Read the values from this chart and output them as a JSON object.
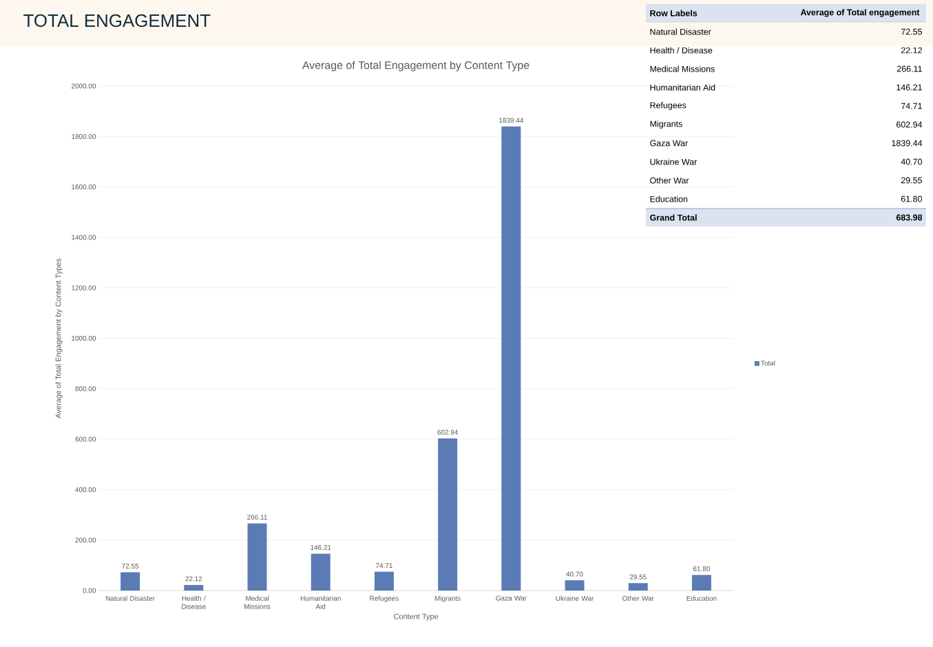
{
  "chart_data": {
    "type": "bar",
    "title": "Average of Total Engagement by Content Type",
    "xlabel": "Content Type",
    "ylabel": "Average of Total Engagement by Content Types",
    "categories": [
      "Natural Disaster",
      "Health / Disease",
      "Medical Missions",
      "Humanitarian Aid",
      "Refugees",
      "Migrants",
      "Gaza War",
      "Ukraine War",
      "Other War",
      "Education"
    ],
    "series": [
      {
        "name": "Total",
        "color": "#5b7bb5",
        "values": [
          72.55,
          22.12,
          266.11,
          146.21,
          74.71,
          602.94,
          1839.44,
          40.7,
          29.55,
          61.8
        ],
        "value_labels": [
          "72.55",
          "22.12",
          "266.11",
          "146.21",
          "74.71",
          "602.94",
          "1839.44",
          "40.70",
          "29.55",
          "61.80"
        ]
      }
    ],
    "ylim": [
      0,
      2000
    ],
    "yticks": [
      {
        "value": 0,
        "label": "0.00"
      },
      {
        "value": 200,
        "label": "200.00"
      },
      {
        "value": 400,
        "label": "400.00"
      },
      {
        "value": 600,
        "label": "600.00"
      },
      {
        "value": 800,
        "label": "800.00"
      },
      {
        "value": 1000,
        "label": "1000.00"
      },
      {
        "value": 1200,
        "label": "1200.00"
      },
      {
        "value": 1400,
        "label": "1400.00"
      },
      {
        "value": 1600,
        "label": "1600.00"
      },
      {
        "value": 1800,
        "label": "1800.00"
      },
      {
        "value": 2000,
        "label": "2000.00"
      }
    ],
    "grid": "y",
    "legend": "right",
    "annotations": [
      "TOTAL ENGAGEMENT",
      "Row Labels",
      "Average of Total engagement",
      "Grand Total",
      "683.98"
    ]
  }
}
